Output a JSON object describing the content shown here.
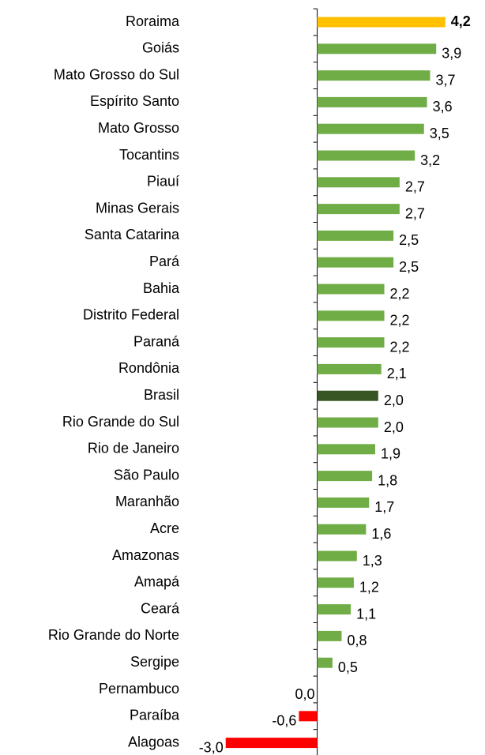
{
  "chart_data": {
    "type": "bar",
    "orientation": "horizontal",
    "categories": [
      "Roraima",
      "Goiás",
      "Mato Grosso do Sul",
      "Espírito Santo",
      "Mato Grosso",
      "Tocantins",
      "Piauí",
      "Minas Gerais",
      "Santa Catarina",
      "Pará",
      "Bahia",
      "Distrito Federal",
      "Paraná",
      "Rondônia",
      "Brasil",
      "Rio Grande do Sul",
      "Rio de Janeiro",
      "São Paulo",
      "Maranhão",
      "Acre",
      "Amazonas",
      "Amapá",
      "Ceará",
      "Rio Grande do Norte",
      "Sergipe",
      "Pernambuco",
      "Paraíba",
      "Alagoas"
    ],
    "values": [
      4.2,
      3.9,
      3.7,
      3.6,
      3.5,
      3.2,
      2.7,
      2.7,
      2.5,
      2.5,
      2.2,
      2.2,
      2.2,
      2.1,
      2.0,
      2.0,
      1.9,
      1.8,
      1.7,
      1.6,
      1.3,
      1.2,
      1.1,
      0.8,
      0.5,
      0.0,
      -0.6,
      -3.0
    ],
    "value_labels": [
      "4,2",
      "3,9",
      "3,7",
      "3,6",
      "3,5",
      "3,2",
      "2,7",
      "2,7",
      "2,5",
      "2,5",
      "2,2",
      "2,2",
      "2,2",
      "2,1",
      "2,0",
      "2,0",
      "1,9",
      "1,8",
      "1,7",
      "1,6",
      "1,3",
      "1,2",
      "1,1",
      "0,8",
      "0,5",
      "0,0",
      "-0,6",
      "-3,0"
    ],
    "colors": [
      "#ffc000",
      "#70ad47",
      "#70ad47",
      "#70ad47",
      "#70ad47",
      "#70ad47",
      "#70ad47",
      "#70ad47",
      "#70ad47",
      "#70ad47",
      "#70ad47",
      "#70ad47",
      "#70ad47",
      "#70ad47",
      "#375623",
      "#70ad47",
      "#70ad47",
      "#70ad47",
      "#70ad47",
      "#70ad47",
      "#70ad47",
      "#70ad47",
      "#70ad47",
      "#70ad47",
      "#70ad47",
      "#ff0000",
      "#ff0000",
      "#ff0000"
    ],
    "xlim": [
      -3.2,
      5.5
    ]
  }
}
